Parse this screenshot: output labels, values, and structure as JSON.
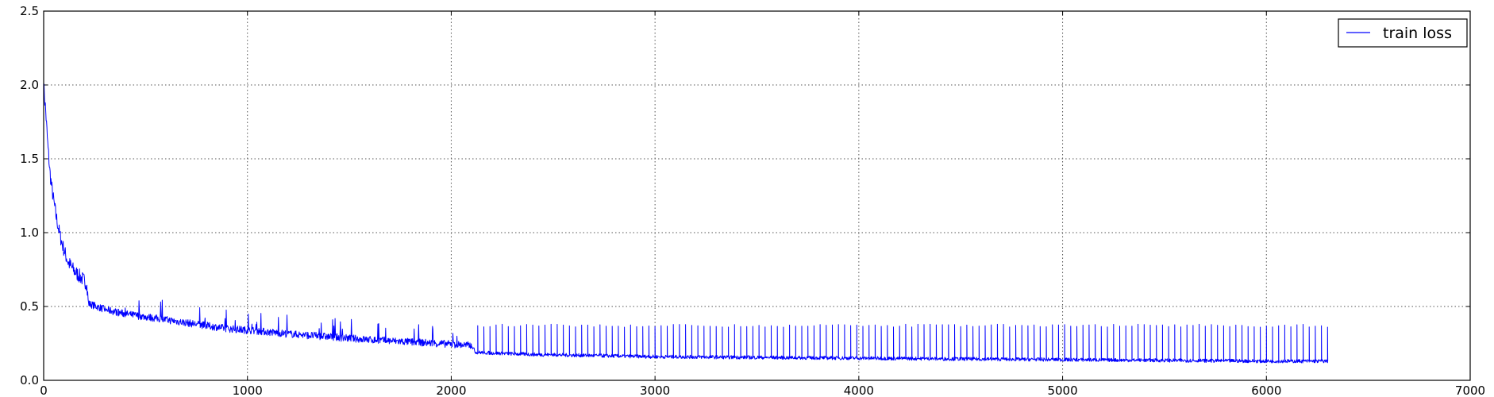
{
  "chart_data": {
    "type": "line",
    "title": "",
    "xlabel": "",
    "ylabel": "",
    "xlim": [
      0,
      7000
    ],
    "ylim": [
      0,
      2.5
    ],
    "xticks": [
      "0",
      "1000",
      "2000",
      "3000",
      "4000",
      "5000",
      "6000",
      "7000"
    ],
    "yticks": [
      "0.0",
      "0.5",
      "1.0",
      "1.5",
      "2.0",
      "2.5"
    ],
    "grid": true,
    "legend": {
      "position": "top-right",
      "entries": [
        "train loss"
      ]
    },
    "series": [
      {
        "name": "train loss",
        "color": "#0000ff",
        "x_range": [
          0,
          6300
        ],
        "points": [
          [
            0,
            2.0
          ],
          [
            10,
            1.82
          ],
          [
            20,
            1.6
          ],
          [
            30,
            1.42
          ],
          [
            40,
            1.3
          ],
          [
            60,
            1.12
          ],
          [
            80,
            0.98
          ],
          [
            100,
            0.88
          ],
          [
            120,
            0.8
          ],
          [
            150,
            0.74
          ],
          [
            180,
            0.7
          ],
          [
            210,
            0.66
          ],
          [
            220,
            0.52
          ],
          [
            260,
            0.5
          ],
          [
            300,
            0.48
          ],
          [
            400,
            0.45
          ],
          [
            500,
            0.43
          ],
          [
            600,
            0.41
          ],
          [
            700,
            0.39
          ],
          [
            800,
            0.37
          ],
          [
            900,
            0.35
          ],
          [
            1000,
            0.34
          ],
          [
            1200,
            0.315
          ],
          [
            1400,
            0.295
          ],
          [
            1600,
            0.275
          ],
          [
            1800,
            0.26
          ],
          [
            2000,
            0.245
          ],
          [
            2100,
            0.235
          ],
          [
            2120,
            0.19
          ],
          [
            2200,
            0.185
          ],
          [
            2400,
            0.175
          ],
          [
            2600,
            0.17
          ],
          [
            3000,
            0.16
          ],
          [
            3500,
            0.155
          ],
          [
            4000,
            0.15
          ],
          [
            4500,
            0.145
          ],
          [
            5000,
            0.14
          ],
          [
            5500,
            0.135
          ],
          [
            6000,
            0.13
          ],
          [
            6300,
            0.13
          ]
        ],
        "spikes": [
          {
            "x_range": [
              2120,
              6300
            ],
            "peak": 0.38,
            "interval": 30
          }
        ]
      }
    ]
  }
}
